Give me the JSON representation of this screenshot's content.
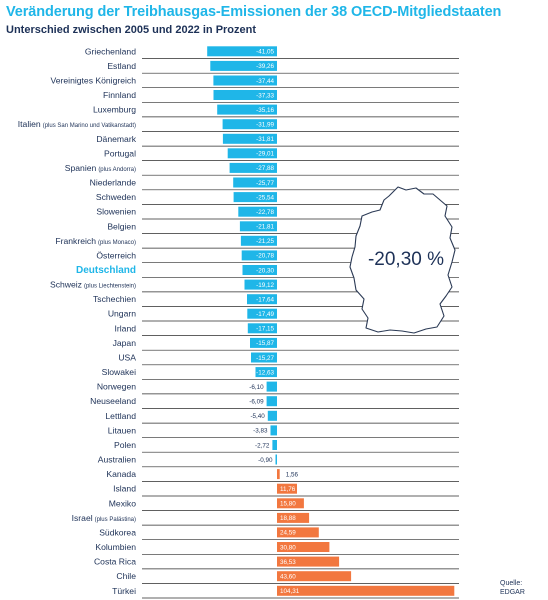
{
  "title": "Veränderung der Treibhausgas-Emissionen der 38 OECD-Mitgliedstaaten",
  "subtitle": "Unterschied zwischen 2005 und 2022 in Prozent",
  "source": [
    "Quelle:",
    "EDGAR"
  ],
  "highlight_value": "-20,30 %",
  "colors": {
    "negative": "#1fb6e8",
    "positive": "#f2773f",
    "title": "#1fb6e8",
    "text": "#1d3157",
    "gridline": "#2b2b2b",
    "map_outline": "#2b3a55"
  },
  "icons": {
    "map": "germany-map-icon"
  },
  "chart_data": {
    "type": "bar",
    "orientation": "horizontal",
    "title": "Veränderung der Treibhausgas-Emissionen der 38 OECD-Mitgliedstaaten",
    "subtitle": "Unterschied zwischen 2005 und 2022 in Prozent",
    "highlight": "Deutschland",
    "categories": [
      {
        "name": "Griechenland",
        "value": -41.05,
        "label": "-41,05"
      },
      {
        "name": "Estland",
        "value": -39.26,
        "label": "-39,26"
      },
      {
        "name": "Vereinigtes Königreich",
        "value": -37.44,
        "label": "-37,44"
      },
      {
        "name": "Finnland",
        "value": -37.33,
        "label": "-37,33"
      },
      {
        "name": "Luxemburg",
        "value": -35.16,
        "label": "-35,16"
      },
      {
        "name": "Italien",
        "note": "(plus San Marino und Vatikanstadt)",
        "value": -31.99,
        "label": "-31,99"
      },
      {
        "name": "Dänemark",
        "value": -31.81,
        "label": "-31,81"
      },
      {
        "name": "Portugal",
        "value": -29.01,
        "label": "-29,01"
      },
      {
        "name": "Spanien",
        "note": "(plus Andorra)",
        "value": -27.88,
        "label": "-27,88"
      },
      {
        "name": "Niederlande",
        "value": -25.77,
        "label": "-25,77"
      },
      {
        "name": "Schweden",
        "value": -25.54,
        "label": "-25,54"
      },
      {
        "name": "Slowenien",
        "value": -22.78,
        "label": "-22,78"
      },
      {
        "name": "Belgien",
        "value": -21.81,
        "label": "-21,81"
      },
      {
        "name": "Frankreich",
        "note": "(plus Monaco)",
        "value": -21.25,
        "label": "-21,25"
      },
      {
        "name": "Österreich",
        "value": -20.78,
        "label": "-20,78"
      },
      {
        "name": "Deutschland",
        "value": -20.3,
        "label": "-20,30"
      },
      {
        "name": "Schweiz",
        "note": "(plus Liechtenstein)",
        "value": -19.12,
        "label": "-19,12"
      },
      {
        "name": "Tschechien",
        "value": -17.64,
        "label": "-17,64"
      },
      {
        "name": "Ungarn",
        "value": -17.49,
        "label": "-17,49"
      },
      {
        "name": "Irland",
        "value": -17.15,
        "label": "-17,15"
      },
      {
        "name": "Japan",
        "value": -15.87,
        "label": "-15,87"
      },
      {
        "name": "USA",
        "value": -15.27,
        "label": "-15,27"
      },
      {
        "name": "Slowakei",
        "value": -12.63,
        "label": "-12,63"
      },
      {
        "name": "Norwegen",
        "value": -6.1,
        "label": "-6,10"
      },
      {
        "name": "Neuseeland",
        "value": -6.09,
        "label": "-6,09"
      },
      {
        "name": "Lettland",
        "value": -5.4,
        "label": "-5,40"
      },
      {
        "name": "Litauen",
        "value": -3.83,
        "label": "-3,83"
      },
      {
        "name": "Polen",
        "value": -2.72,
        "label": "-2,72"
      },
      {
        "name": "Australien",
        "value": -0.9,
        "label": "-0,90"
      },
      {
        "name": "Kanada",
        "value": 1.56,
        "label": "1,56"
      },
      {
        "name": "Island",
        "value": 11.76,
        "label": "11,76"
      },
      {
        "name": "Mexiko",
        "value": 15.8,
        "label": "15,80"
      },
      {
        "name": "Israel",
        "note": "(plus Palästina)",
        "value": 18.88,
        "label": "18,88"
      },
      {
        "name": "Südkorea",
        "value": 24.59,
        "label": "24,59"
      },
      {
        "name": "Kolumbien",
        "value": 30.8,
        "label": "30,80"
      },
      {
        "name": "Costa Rica",
        "value": 36.53,
        "label": "36,53"
      },
      {
        "name": "Chile",
        "value": 43.6,
        "label": "43,60"
      },
      {
        "name": "Türkei",
        "value": 104.31,
        "label": "104,31"
      }
    ],
    "xlim": [
      -45,
      106
    ],
    "grid": true,
    "legend": "none"
  }
}
